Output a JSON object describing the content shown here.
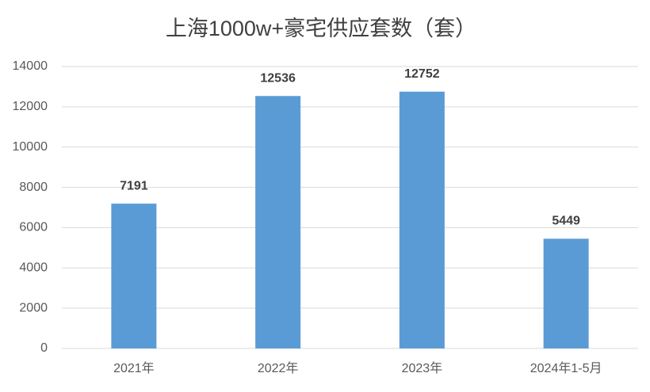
{
  "chart_data": {
    "type": "bar",
    "title": "上海1000w+豪宅供应套数（套）",
    "categories": [
      "2021年",
      "2022年",
      "2023年",
      "2024年1-5月"
    ],
    "values": [
      7191,
      12536,
      12752,
      5449
    ],
    "color": "#5b9bd5",
    "ylim": [
      0,
      14000
    ],
    "yticks": [
      0,
      2000,
      4000,
      6000,
      8000,
      10000,
      12000,
      14000
    ],
    "grid": true
  }
}
